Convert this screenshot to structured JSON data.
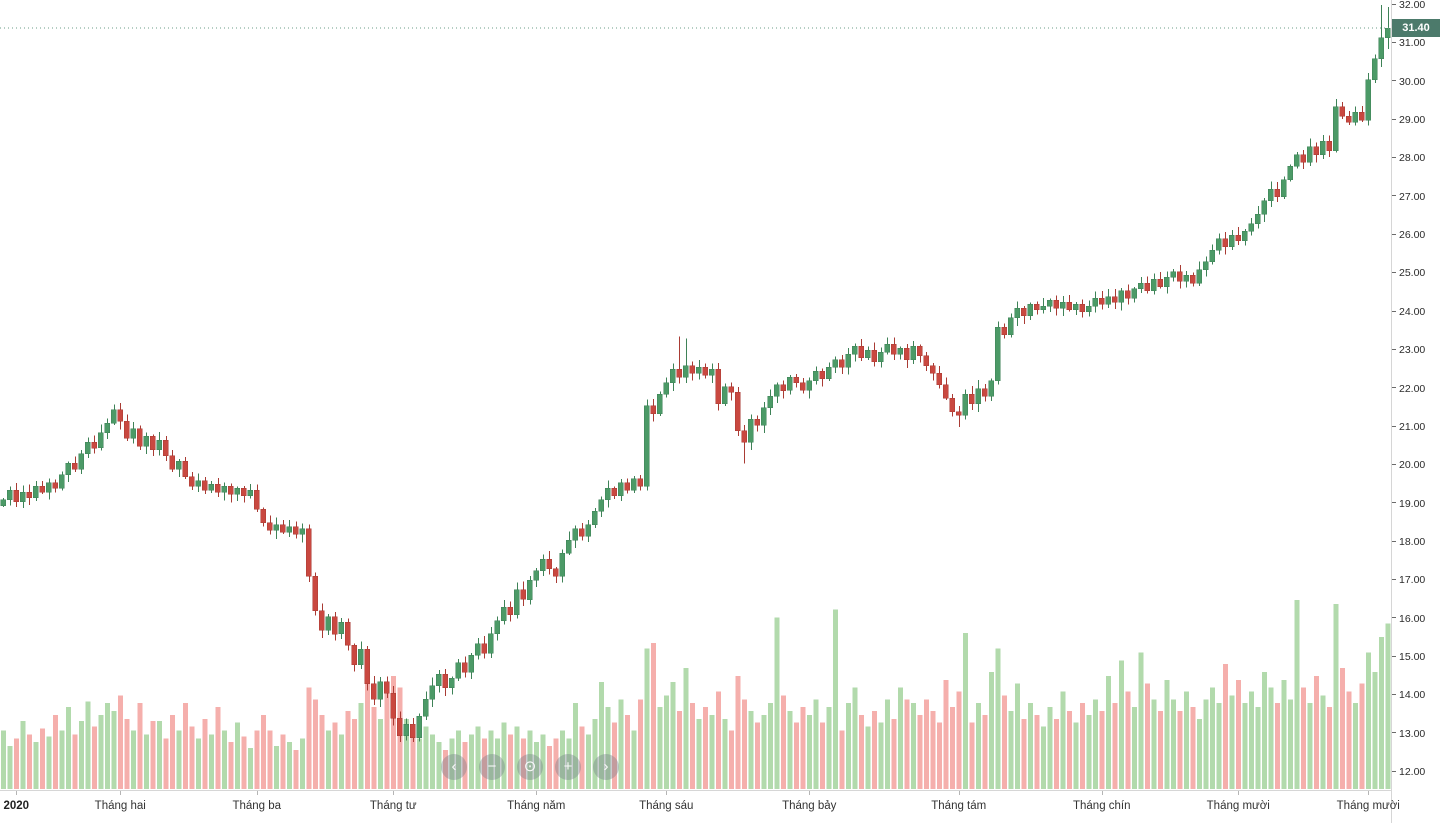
{
  "chart_data": {
    "type": "candlestick",
    "title": "",
    "instrument_last_price_note": "last traded price shown on axis badge",
    "last_price": 31.4,
    "last_price_label": "31.40",
    "first_open": 18.95,
    "y_axis": {
      "min": 12,
      "max": 32,
      "step": 1,
      "tick_format": "0.00"
    },
    "time_axis": {
      "labels": [
        {
          "label": "2020",
          "index": 2,
          "bold": true
        },
        {
          "label": "Tháng hai",
          "index": 18
        },
        {
          "label": "Tháng ba",
          "index": 39
        },
        {
          "label": "Tháng tư",
          "index": 60
        },
        {
          "label": "Tháng năm",
          "index": 82
        },
        {
          "label": "Tháng sáu",
          "index": 102
        },
        {
          "label": "Tháng bảy",
          "index": 124
        },
        {
          "label": "Tháng tám",
          "index": 147
        },
        {
          "label": "Tháng chín",
          "index": 169
        },
        {
          "label": "Tháng mười",
          "index": 190
        },
        {
          "label": "Tháng mười",
          "index": 210
        }
      ]
    },
    "closes": [
      19.1,
      19.35,
      19.05,
      19.3,
      19.15,
      19.45,
      19.3,
      19.55,
      19.4,
      19.75,
      20.05,
      19.9,
      20.3,
      20.6,
      20.45,
      20.85,
      21.1,
      21.45,
      21.15,
      20.7,
      20.95,
      20.5,
      20.75,
      20.4,
      20.65,
      20.25,
      19.9,
      20.1,
      19.7,
      19.45,
      19.6,
      19.35,
      19.5,
      19.3,
      19.45,
      19.25,
      19.4,
      19.2,
      19.35,
      18.85,
      18.5,
      18.3,
      18.45,
      18.25,
      18.4,
      18.2,
      18.35,
      17.1,
      16.2,
      15.7,
      16.05,
      15.6,
      15.9,
      15.3,
      14.8,
      15.2,
      14.3,
      13.9,
      14.35,
      14.05,
      13.4,
      12.95,
      13.25,
      12.9,
      13.45,
      13.9,
      14.25,
      14.55,
      14.2,
      14.45,
      14.85,
      14.6,
      15.05,
      15.35,
      15.1,
      15.6,
      15.95,
      16.3,
      16.1,
      16.75,
      16.5,
      17.0,
      17.25,
      17.55,
      17.3,
      17.1,
      17.7,
      18.05,
      18.35,
      18.15,
      18.45,
      18.8,
      19.1,
      19.4,
      19.2,
      19.55,
      19.35,
      19.65,
      19.45,
      21.55,
      21.35,
      21.85,
      22.15,
      22.5,
      22.3,
      22.6,
      22.4,
      22.55,
      22.35,
      22.5,
      21.6,
      22.05,
      21.9,
      20.9,
      20.6,
      21.2,
      21.05,
      21.5,
      21.8,
      22.1,
      21.95,
      22.3,
      22.15,
      21.95,
      22.2,
      22.45,
      22.25,
      22.55,
      22.75,
      22.55,
      22.9,
      23.1,
      22.8,
      23.0,
      22.7,
      22.95,
      23.15,
      22.9,
      23.05,
      22.75,
      23.1,
      22.85,
      22.6,
      22.4,
      22.1,
      21.75,
      21.4,
      21.3,
      21.85,
      21.6,
      22.0,
      21.8,
      22.2,
      23.6,
      23.4,
      23.85,
      24.1,
      23.9,
      24.2,
      24.05,
      24.15,
      24.3,
      24.1,
      24.25,
      24.05,
      24.2,
      24.0,
      24.15,
      24.35,
      24.2,
      24.4,
      24.25,
      24.55,
      24.35,
      24.6,
      24.75,
      24.55,
      24.85,
      24.65,
      24.9,
      25.05,
      24.8,
      24.95,
      24.75,
      25.1,
      25.3,
      25.6,
      25.9,
      25.7,
      26.0,
      25.85,
      26.1,
      26.3,
      26.55,
      26.9,
      27.2,
      27.0,
      27.45,
      27.8,
      28.1,
      27.9,
      28.3,
      28.1,
      28.45,
      28.2,
      29.35,
      29.1,
      28.95,
      29.2,
      29.0,
      30.05,
      30.6,
      31.15,
      31.4
    ],
    "volumes": [
      0.3,
      0.22,
      0.26,
      0.35,
      0.28,
      0.24,
      0.31,
      0.27,
      0.38,
      0.3,
      0.42,
      0.28,
      0.35,
      0.45,
      0.32,
      0.38,
      0.44,
      0.4,
      0.48,
      0.36,
      0.3,
      0.44,
      0.28,
      0.35,
      0.35,
      0.26,
      0.38,
      0.3,
      0.44,
      0.32,
      0.26,
      0.36,
      0.28,
      0.42,
      0.3,
      0.24,
      0.34,
      0.27,
      0.21,
      0.3,
      0.38,
      0.3,
      0.22,
      0.28,
      0.24,
      0.2,
      0.26,
      0.52,
      0.46,
      0.38,
      0.3,
      0.34,
      0.28,
      0.4,
      0.36,
      0.44,
      0.58,
      0.42,
      0.36,
      0.55,
      0.58,
      0.52,
      0.36,
      0.3,
      0.26,
      0.32,
      0.28,
      0.24,
      0.2,
      0.26,
      0.3,
      0.24,
      0.28,
      0.32,
      0.26,
      0.3,
      0.26,
      0.34,
      0.28,
      0.32,
      0.26,
      0.3,
      0.24,
      0.28,
      0.22,
      0.26,
      0.3,
      0.26,
      0.44,
      0.32,
      0.28,
      0.36,
      0.55,
      0.42,
      0.34,
      0.46,
      0.38,
      0.3,
      0.46,
      0.72,
      0.75,
      0.42,
      0.48,
      0.55,
      0.4,
      0.62,
      0.44,
      0.36,
      0.42,
      0.38,
      0.5,
      0.36,
      0.3,
      0.58,
      0.46,
      0.4,
      0.34,
      0.38,
      0.44,
      0.88,
      0.48,
      0.4,
      0.34,
      0.42,
      0.38,
      0.46,
      0.34,
      0.42,
      0.92,
      0.3,
      0.44,
      0.52,
      0.38,
      0.32,
      0.4,
      0.34,
      0.46,
      0.36,
      0.52,
      0.46,
      0.44,
      0.38,
      0.46,
      0.4,
      0.34,
      0.56,
      0.42,
      0.5,
      0.8,
      0.34,
      0.44,
      0.38,
      0.6,
      0.72,
      0.48,
      0.4,
      0.54,
      0.36,
      0.44,
      0.38,
      0.32,
      0.42,
      0.36,
      0.5,
      0.4,
      0.34,
      0.44,
      0.38,
      0.46,
      0.4,
      0.58,
      0.44,
      0.66,
      0.5,
      0.42,
      0.7,
      0.54,
      0.46,
      0.4,
      0.56,
      0.46,
      0.4,
      0.5,
      0.42,
      0.36,
      0.46,
      0.52,
      0.44,
      0.64,
      0.48,
      0.56,
      0.44,
      0.5,
      0.42,
      0.6,
      0.52,
      0.44,
      0.56,
      0.46,
      0.97,
      0.52,
      0.44,
      0.58,
      0.48,
      0.42,
      0.95,
      0.62,
      0.5,
      0.44,
      0.54,
      0.7,
      0.6,
      0.78,
      0.85
    ],
    "wick_overrides": {
      "47": {
        "high": 18.45,
        "low": 16.95
      },
      "63": {
        "low": 12.78
      },
      "104": {
        "high": 23.35
      },
      "105": {
        "high": 23.3
      },
      "114": {
        "low": 20.05
      },
      "147": {
        "low": 21.0
      },
      "153": {
        "high": 23.75
      },
      "205": {
        "high": 29.55
      },
      "212": {
        "high": 32.0
      },
      "213": {
        "high": 31.95,
        "low": 30.85
      }
    },
    "colors": {
      "up": "#4C9A67",
      "up_stroke": "#3E8257",
      "down": "#C94840",
      "down_stroke": "#A93B34",
      "volume_up": "#B2DAAC",
      "volume_down": "#F5AFAC",
      "last_price_line": "#6B9C87",
      "badge_bg": "#4C7A6B",
      "axis_text": "#2B2B2B",
      "axis_border": "#D6D6D6"
    },
    "legend_position": "none",
    "grid": false
  },
  "nav": {
    "buttons": [
      {
        "name": "pan-left-button",
        "glyph": "‹"
      },
      {
        "name": "zoom-out-button",
        "glyph": "−"
      },
      {
        "name": "reset-zoom-button",
        "glyph": "⊙"
      },
      {
        "name": "zoom-in-button",
        "glyph": "+"
      },
      {
        "name": "pan-right-button",
        "glyph": "›"
      }
    ]
  }
}
